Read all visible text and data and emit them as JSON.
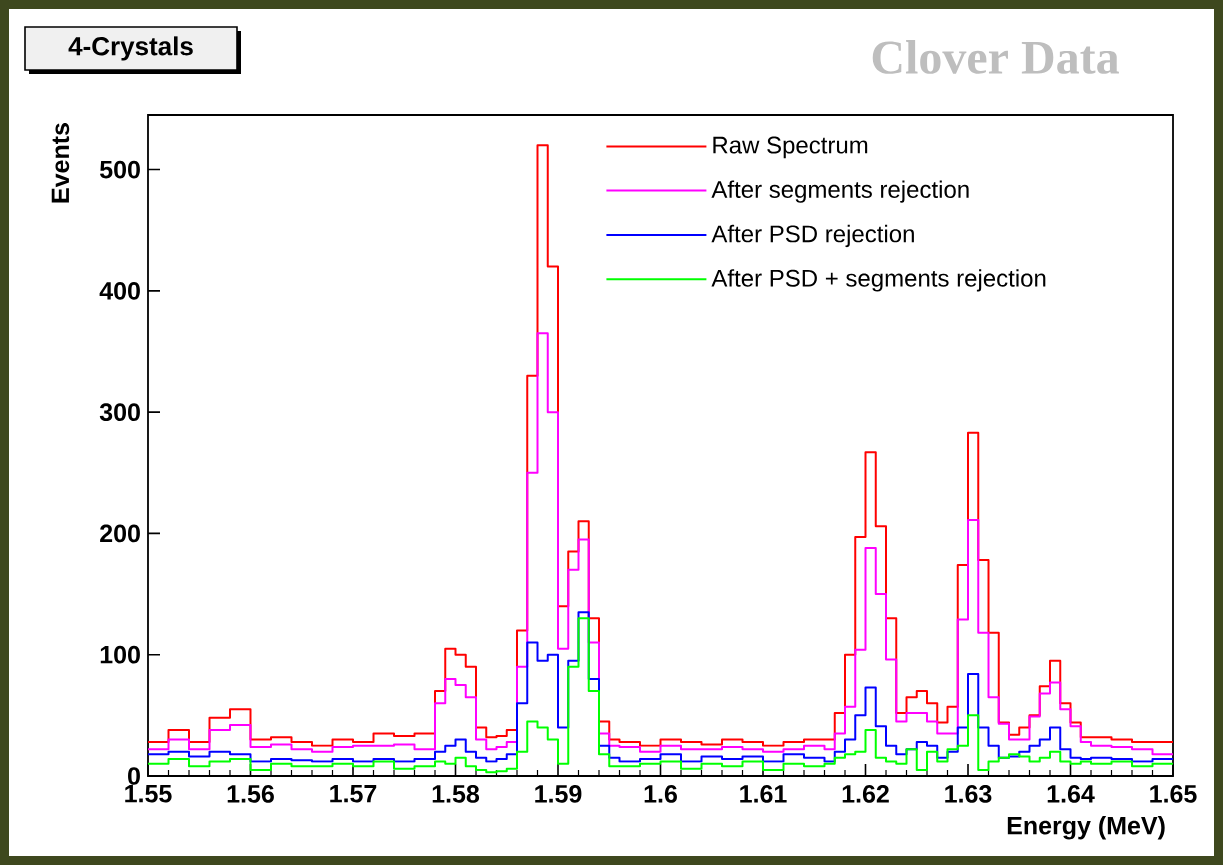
{
  "chart_data": {
    "type": "step",
    "title": "4-Crystals",
    "xlabel": "Energy (MeV)",
    "ylabel": "Events",
    "annotations": [
      "Clover Data"
    ],
    "xlim": [
      1.55,
      1.65
    ],
    "ylim": [
      0,
      545
    ],
    "xticks": [
      1.55,
      1.56,
      1.57,
      1.58,
      1.59,
      1.6,
      1.61,
      1.62,
      1.63,
      1.64,
      1.65
    ],
    "yticks": [
      0,
      100,
      200,
      300,
      400,
      500
    ],
    "grid": false,
    "legend": "top right",
    "marker": "none",
    "line_style": "solid",
    "x": [
      1.55,
      1.552,
      1.554,
      1.556,
      1.558,
      1.56,
      1.562,
      1.564,
      1.566,
      1.568,
      1.57,
      1.572,
      1.574,
      1.576,
      1.578,
      1.579,
      1.58,
      1.581,
      1.582,
      1.583,
      1.584,
      1.585,
      1.586,
      1.587,
      1.588,
      1.589,
      1.59,
      1.591,
      1.592,
      1.593,
      1.594,
      1.595,
      1.596,
      1.598,
      1.6,
      1.602,
      1.604,
      1.606,
      1.608,
      1.61,
      1.612,
      1.614,
      1.616,
      1.617,
      1.618,
      1.619,
      1.62,
      1.621,
      1.622,
      1.623,
      1.624,
      1.625,
      1.626,
      1.627,
      1.628,
      1.629,
      1.63,
      1.631,
      1.632,
      1.633,
      1.634,
      1.635,
      1.636,
      1.637,
      1.638,
      1.639,
      1.64,
      1.641,
      1.642,
      1.644,
      1.646,
      1.648,
      1.65
    ],
    "series": [
      {
        "name": "Raw Spectrum",
        "color": "#ff0000",
        "values": [
          28,
          38,
          28,
          48,
          55,
          30,
          32,
          28,
          25,
          30,
          28,
          35,
          33,
          35,
          70,
          105,
          100,
          90,
          40,
          32,
          33,
          38,
          120,
          330,
          520,
          420,
          140,
          185,
          210,
          130,
          45,
          30,
          28,
          25,
          30,
          28,
          26,
          30,
          28,
          25,
          28,
          30,
          30,
          52,
          100,
          197,
          267,
          206,
          130,
          52,
          65,
          70,
          60,
          44,
          57,
          174,
          283,
          178,
          118,
          44,
          34,
          40,
          50,
          74,
          95,
          60,
          44,
          32,
          32,
          30,
          28,
          28,
          28
        ]
      },
      {
        "name": "After segments rejection",
        "color": "#ff00ff",
        "values": [
          22,
          30,
          22,
          38,
          42,
          24,
          26,
          22,
          20,
          24,
          25,
          25,
          26,
          22,
          60,
          80,
          75,
          65,
          30,
          22,
          24,
          28,
          90,
          250,
          365,
          300,
          105,
          170,
          195,
          110,
          35,
          25,
          24,
          20,
          25,
          22,
          22,
          24,
          22,
          20,
          22,
          25,
          22,
          35,
          57,
          104,
          188,
          150,
          96,
          45,
          52,
          52,
          45,
          35,
          35,
          129,
          211,
          118,
          65,
          43,
          30,
          30,
          49,
          68,
          77,
          55,
          41,
          28,
          25,
          24,
          22,
          18,
          18
        ]
      },
      {
        "name": "After PSD rejection",
        "color": "#0000ff",
        "values": [
          18,
          20,
          16,
          20,
          18,
          12,
          14,
          13,
          12,
          14,
          12,
          14,
          12,
          14,
          20,
          25,
          30,
          20,
          15,
          12,
          14,
          18,
          60,
          110,
          95,
          100,
          40,
          95,
          135,
          80,
          25,
          15,
          12,
          14,
          18,
          12,
          16,
          14,
          16,
          12,
          18,
          15,
          12,
          20,
          30,
          50,
          73,
          41,
          25,
          18,
          22,
          28,
          25,
          15,
          20,
          40,
          84,
          40,
          25,
          15,
          16,
          20,
          25,
          30,
          40,
          22,
          15,
          14,
          15,
          14,
          12,
          14,
          14
        ]
      },
      {
        "name": "After PSD + segments rejection",
        "color": "#00ff00",
        "values": [
          10,
          14,
          8,
          12,
          14,
          5,
          10,
          8,
          8,
          10,
          8,
          12,
          6,
          8,
          12,
          10,
          15,
          8,
          5,
          3,
          4,
          6,
          20,
          45,
          40,
          30,
          10,
          90,
          130,
          70,
          18,
          8,
          8,
          10,
          12,
          6,
          10,
          8,
          12,
          5,
          10,
          8,
          10,
          15,
          18,
          20,
          38,
          15,
          12,
          10,
          22,
          5,
          20,
          12,
          22,
          25,
          50,
          5,
          12,
          15,
          18,
          16,
          12,
          15,
          20,
          12,
          10,
          12,
          10,
          12,
          8,
          10,
          10
        ]
      }
    ]
  }
}
